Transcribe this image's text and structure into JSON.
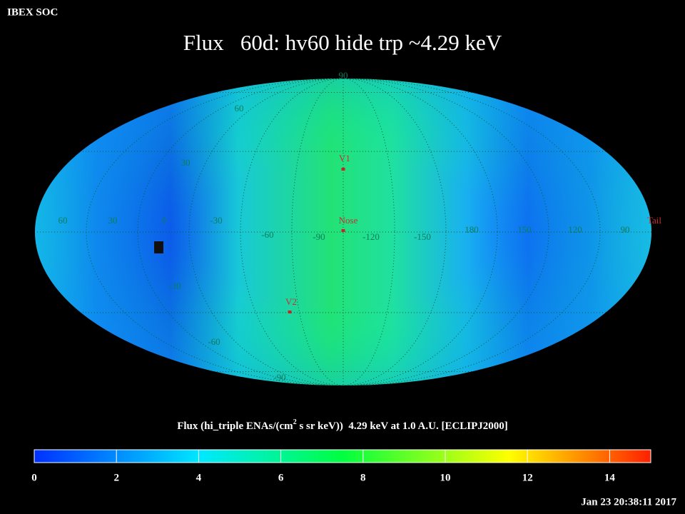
{
  "header": {
    "source": "IBEX SOC",
    "title": "Flux   60d: hv60 hide trp ~4.29 keV",
    "timestamp": "Jan 23 20:38:11 2017"
  },
  "map": {
    "latitude_labels": [
      90,
      60,
      30,
      -30,
      -60,
      -90
    ],
    "longitude_labels": [
      60,
      30,
      0,
      -30,
      -60,
      -90,
      -120,
      -150,
      180,
      150,
      120,
      90
    ],
    "markers": [
      {
        "label": "V1"
      },
      {
        "label": "Nose"
      },
      {
        "label": "V2"
      },
      {
        "label": "Tail"
      }
    ]
  },
  "colorbar": {
    "label_before": "Flux (hi_triple ENAs/(cm",
    "label_sup": "2",
    "label_after": " s sr keV))  4.29 keV at 1.0 A.U. [ECLIPJ2000]",
    "range": [
      0,
      15
    ],
    "ticks": [
      0,
      2,
      4,
      6,
      8,
      10,
      12,
      14
    ]
  }
}
